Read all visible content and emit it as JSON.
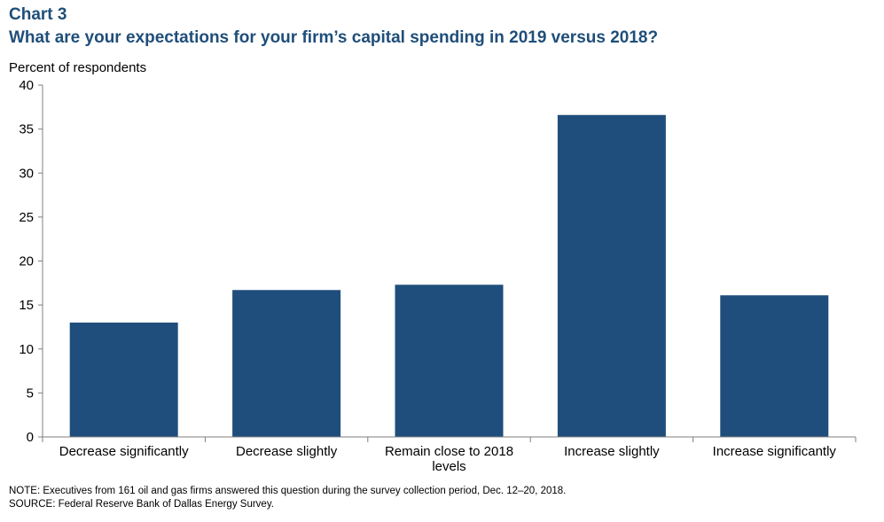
{
  "header": {
    "chart_number": "Chart 3",
    "title": "What are your expectations for your firm’s capital spending in 2019 versus 2018?"
  },
  "colors": {
    "bar": "#1f4e7c",
    "title": "#1f4e79",
    "axis": "#7f7f7f"
  },
  "chart_data": {
    "type": "bar",
    "ylabel": "Percent of respondents",
    "xlabel": "",
    "ylim": [
      0,
      40
    ],
    "yticks": [
      0,
      5,
      10,
      15,
      20,
      25,
      30,
      35,
      40
    ],
    "grid": false,
    "categories": [
      [
        "Decrease significantly"
      ],
      [
        "Decrease slightly"
      ],
      [
        "Remain close to 2018",
        "levels"
      ],
      [
        "Increase slightly"
      ],
      [
        "Increase significantly"
      ]
    ],
    "values": [
      13.0,
      16.7,
      17.3,
      36.6,
      16.1
    ]
  },
  "footer": {
    "note": "NOTE: Executives from 161 oil and gas firms answered this question during the survey collection period, Dec. 12–20, 2018.",
    "source": "SOURCE: Federal Reserve Bank of Dallas Energy Survey."
  }
}
